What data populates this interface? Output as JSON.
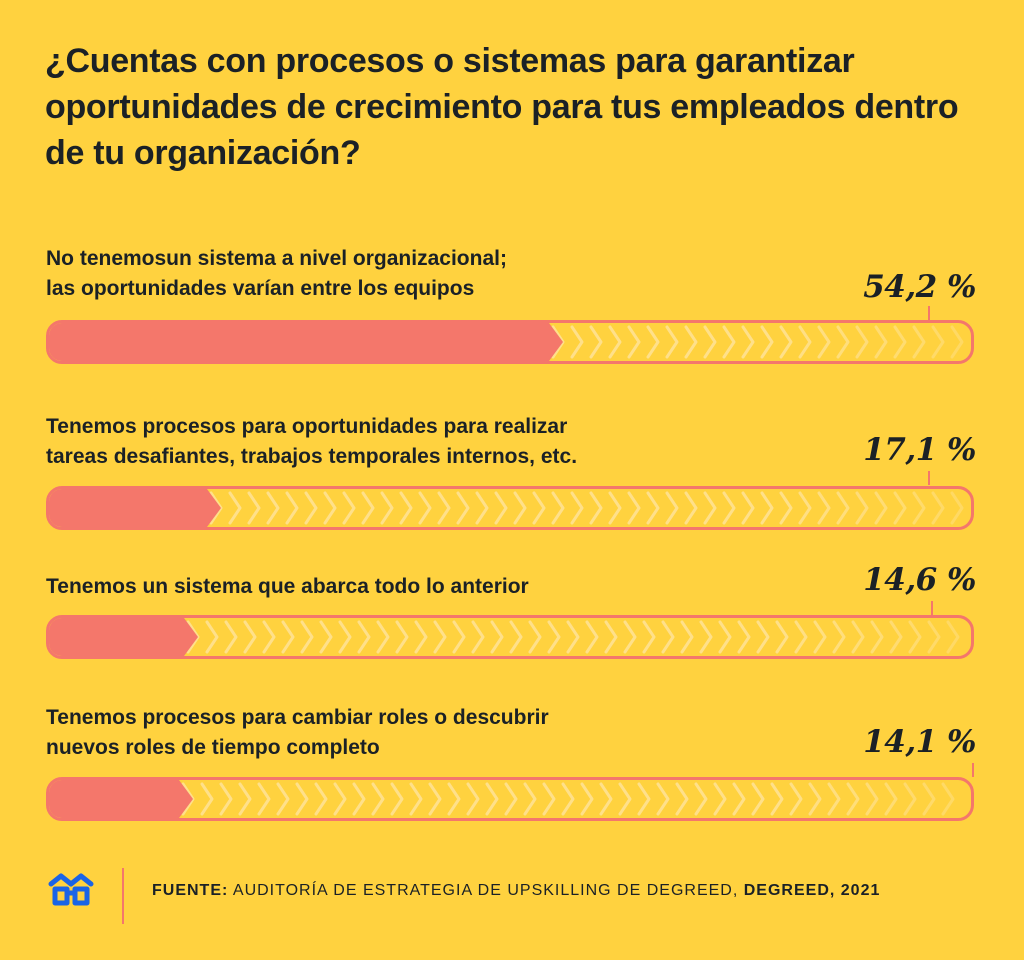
{
  "title": "¿Cuentas con procesos o sistemas para garantizar oportunidades de crecimiento para tus empleados dentro de tu organización?",
  "colors": {
    "background": "#FFD23F",
    "bar_fill": "#F4776B",
    "chevron": "#FFE08A",
    "text": "#1B2126",
    "logo": "#1A64E6"
  },
  "chart_data": {
    "type": "bar",
    "orientation": "horizontal",
    "categories": [
      "No tenemosun sistema a nivel organizacional; las oportunidades varían entre los equipos",
      "Tenemos procesos para oportunidades para realizar tareas desafiantes, trabajos temporales internos, etc.",
      "Tenemos un sistema que abarca todo lo anterior",
      "Tenemos procesos para cambiar roles o descubrir nuevos roles de tiempo completo"
    ],
    "label_lines": [
      [
        "No tenemosun sistema a nivel organizacional;",
        "las oportunidades varían entre los equipos"
      ],
      [
        "Tenemos procesos para oportunidades para realizar",
        "tareas desafiantes, trabajos temporales internos, etc."
      ],
      [
        "Tenemos un sistema que abarca todo lo anterior"
      ],
      [
        "Tenemos procesos para cambiar roles o descubrir",
        "nuevos roles de tiempo completo"
      ]
    ],
    "values": [
      54.2,
      17.1,
      14.6,
      14.1
    ],
    "value_labels": [
      "54,2 %",
      "17,1 %",
      "14,6 %",
      "14,1 %"
    ],
    "xlim": [
      0,
      100
    ]
  },
  "footer": {
    "logo_icon": "glasses-logo-icon",
    "source_label": "FUENTE:",
    "source_text": " AUDITORÍA DE ESTRATEGIA DE UPSKILLING DE DEGREED",
    "separator": ", ",
    "publisher_year": "DEGREED, 2021"
  }
}
